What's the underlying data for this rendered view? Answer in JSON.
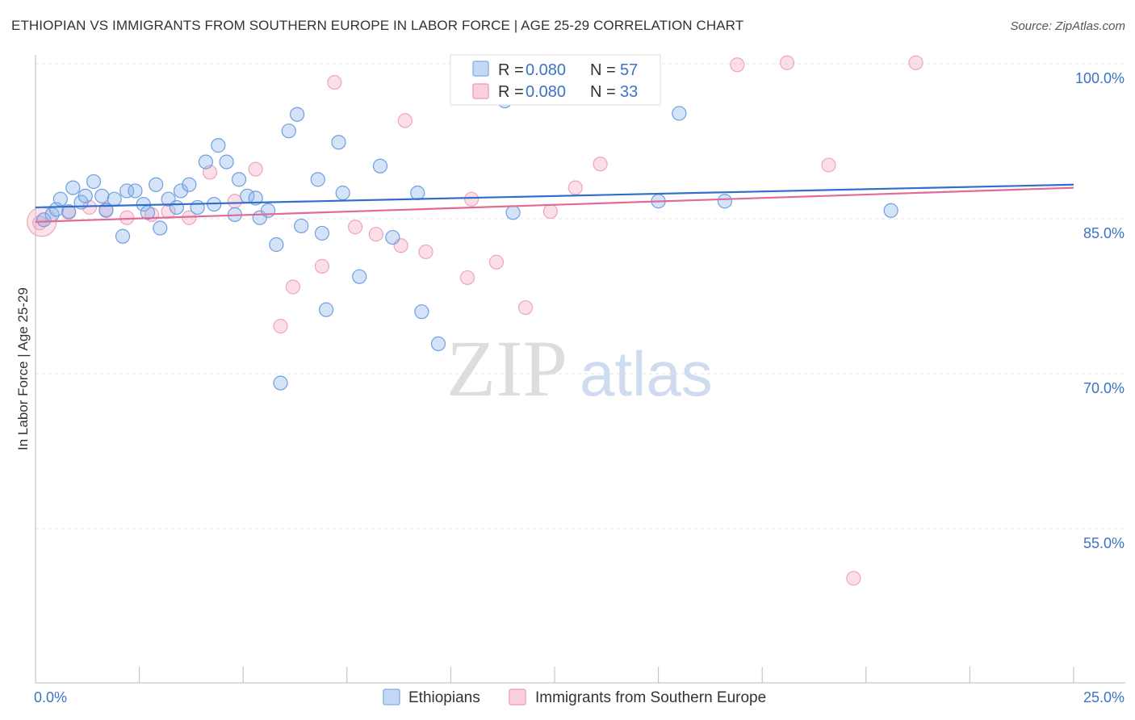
{
  "header": {
    "title": "ETHIOPIAN VS IMMIGRANTS FROM SOUTHERN EUROPE IN LABOR FORCE | AGE 25-29 CORRELATION CHART",
    "source": "Source: ZipAtlas.com"
  },
  "watermark": {
    "zip": "ZIP",
    "atlas": "atlas"
  },
  "legend": {
    "r_label": "R =",
    "n_label": "N =",
    "rows": [
      {
        "r": "0.080",
        "n": "57"
      },
      {
        "r": "0.080",
        "n": "33"
      }
    ]
  },
  "chart_data": {
    "type": "scatter",
    "title": "ETHIOPIAN VS IMMIGRANTS FROM SOUTHERN EUROPE IN LABOR FORCE | AGE 25-29 CORRELATION CHART",
    "xlabel": "",
    "ylabel": "In Labor Force | Age 25-29",
    "xlim": [
      0,
      25
    ],
    "ylim": [
      40,
      101.5
    ],
    "x_tick_labels": [
      "0.0%",
      "25.0%"
    ],
    "y_ticks": [
      100,
      85,
      70,
      55
    ],
    "y_tick_labels": [
      "100.0%",
      "85.0%",
      "70.0%",
      "55.0%"
    ],
    "colors": {
      "Ethiopians": "#8fb6ea",
      "Immigrants from Southern Europe": "#f2a3bd",
      "line_blue": "#2f6fcb",
      "line_pink": "#e26a96"
    },
    "series": [
      {
        "name": "Ethiopians",
        "trend": [
          [
            0,
            86.1
          ],
          [
            25,
            88.3
          ]
        ],
        "points": [
          [
            0.2,
            84.9
          ],
          [
            0.4,
            85.4
          ],
          [
            0.5,
            85.9
          ],
          [
            0.6,
            86.9
          ],
          [
            0.8,
            85.7
          ],
          [
            0.9,
            88.0
          ],
          [
            1.1,
            86.6
          ],
          [
            1.2,
            87.2
          ],
          [
            1.4,
            88.6
          ],
          [
            1.6,
            87.2
          ],
          [
            1.7,
            85.8
          ],
          [
            1.9,
            86.9
          ],
          [
            2.1,
            83.3
          ],
          [
            2.2,
            87.7
          ],
          [
            2.4,
            87.7
          ],
          [
            2.6,
            86.4
          ],
          [
            2.7,
            85.6
          ],
          [
            2.9,
            88.3
          ],
          [
            3.0,
            84.1
          ],
          [
            3.2,
            86.9
          ],
          [
            3.4,
            86.1
          ],
          [
            3.5,
            87.7
          ],
          [
            3.7,
            88.3
          ],
          [
            3.9,
            86.1
          ],
          [
            4.1,
            90.5
          ],
          [
            4.3,
            86.4
          ],
          [
            4.4,
            92.1
          ],
          [
            4.6,
            90.5
          ],
          [
            4.8,
            85.4
          ],
          [
            4.9,
            88.8
          ],
          [
            5.1,
            87.2
          ],
          [
            5.3,
            87.0
          ],
          [
            5.4,
            85.1
          ],
          [
            5.6,
            85.8
          ],
          [
            5.8,
            82.5
          ],
          [
            5.9,
            69.1
          ],
          [
            6.1,
            93.5
          ],
          [
            6.3,
            95.1
          ],
          [
            6.4,
            84.3
          ],
          [
            6.8,
            88.8
          ],
          [
            6.9,
            83.6
          ],
          [
            7.0,
            76.2
          ],
          [
            7.3,
            92.4
          ],
          [
            7.4,
            87.5
          ],
          [
            7.8,
            79.4
          ],
          [
            8.3,
            90.1
          ],
          [
            8.6,
            83.2
          ],
          [
            9.2,
            87.5
          ],
          [
            9.3,
            76.0
          ],
          [
            9.7,
            72.9
          ],
          [
            11.3,
            96.4
          ],
          [
            11.5,
            85.6
          ],
          [
            12.8,
            100.0
          ],
          [
            15.0,
            86.7
          ],
          [
            15.5,
            95.2
          ],
          [
            16.6,
            86.7
          ],
          [
            20.6,
            85.8
          ]
        ]
      },
      {
        "name": "Immigrants from Southern Europe",
        "trend": [
          [
            0,
            84.7
          ],
          [
            25,
            88.0
          ]
        ],
        "points": [
          [
            0.1,
            84.6
          ],
          [
            0.8,
            85.6
          ],
          [
            1.3,
            86.1
          ],
          [
            1.7,
            85.9
          ],
          [
            2.2,
            85.1
          ],
          [
            2.8,
            85.4
          ],
          [
            3.2,
            85.7
          ],
          [
            3.7,
            85.1
          ],
          [
            4.2,
            89.5
          ],
          [
            4.8,
            86.7
          ],
          [
            5.3,
            89.8
          ],
          [
            5.9,
            74.6
          ],
          [
            6.2,
            78.4
          ],
          [
            6.9,
            80.4
          ],
          [
            7.2,
            98.2
          ],
          [
            7.7,
            84.2
          ],
          [
            8.2,
            83.5
          ],
          [
            8.8,
            82.4
          ],
          [
            8.9,
            94.5
          ],
          [
            9.4,
            81.8
          ],
          [
            10.4,
            79.3
          ],
          [
            10.5,
            86.9
          ],
          [
            11.1,
            80.8
          ],
          [
            11.8,
            76.4
          ],
          [
            12.4,
            85.7
          ],
          [
            13.0,
            88.0
          ],
          [
            13.6,
            90.3
          ],
          [
            16.9,
            99.9
          ],
          [
            18.1,
            100.1
          ],
          [
            19.1,
            90.2
          ],
          [
            19.7,
            50.2
          ],
          [
            21.2,
            100.1
          ],
          [
            0.15,
            84.7
          ]
        ]
      }
    ]
  },
  "bottom_legend": {
    "items": [
      {
        "label": "Ethiopians"
      },
      {
        "label": "Immigrants from Southern Europe"
      }
    ]
  }
}
